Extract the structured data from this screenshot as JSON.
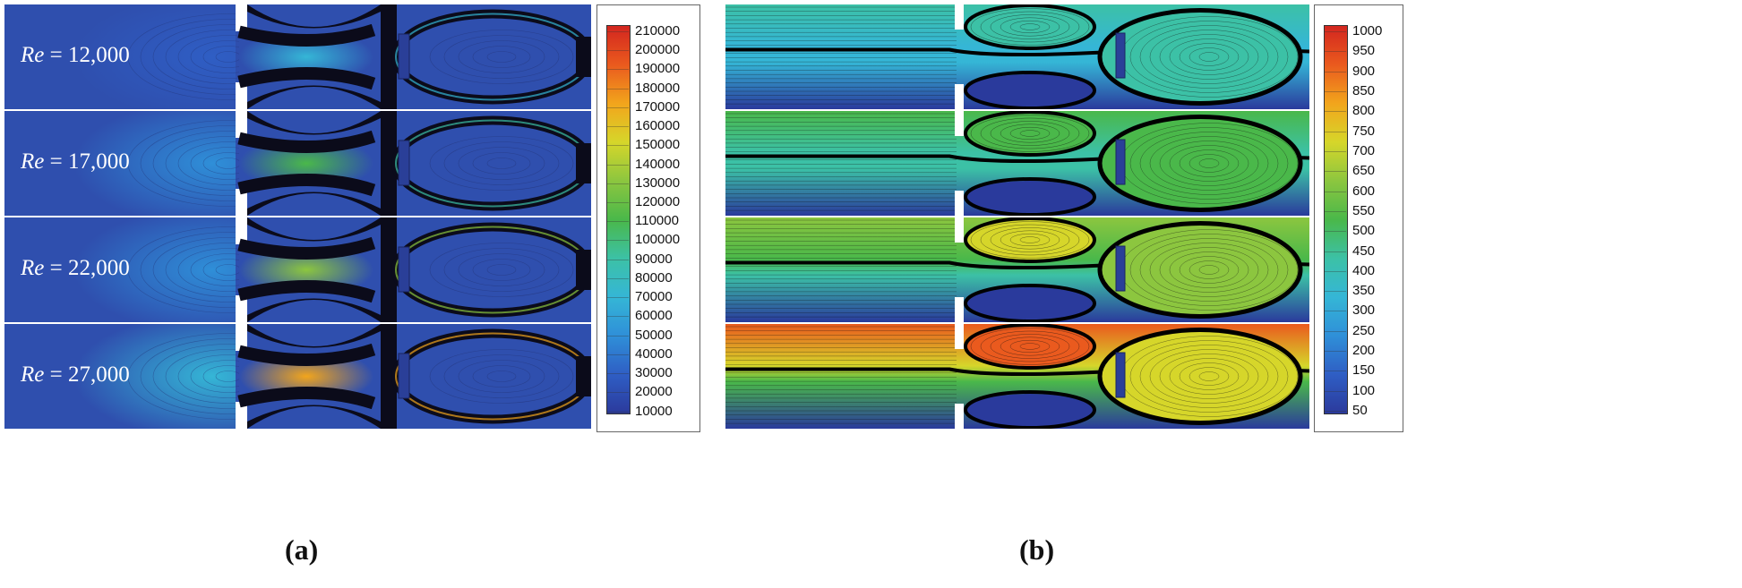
{
  "panel_a": {
    "label": "(a)",
    "rows": [
      {
        "re_symbol": "Re",
        "re_value": " = 12,000",
        "intensity": 0.15
      },
      {
        "re_symbol": "Re",
        "re_value": " = 17,000",
        "intensity": 0.35
      },
      {
        "re_symbol": "Re",
        "re_value": " = 22,000",
        "intensity": 0.55
      },
      {
        "re_symbol": "Re",
        "re_value": " = 27,000",
        "intensity": 0.85
      }
    ],
    "colorbar_ticks": [
      "210000",
      "200000",
      "190000",
      "180000",
      "170000",
      "160000",
      "150000",
      "140000",
      "130000",
      "120000",
      "110000",
      "100000",
      "90000",
      "80000",
      "70000",
      "60000",
      "50000",
      "40000",
      "30000",
      "20000",
      "10000"
    ]
  },
  "panel_b": {
    "label": "(b)",
    "rows": [
      {
        "intensity": 0.3
      },
      {
        "intensity": 0.5
      },
      {
        "intensity": 0.65
      },
      {
        "intensity": 0.95
      }
    ],
    "colorbar_ticks": [
      "1000",
      "950",
      "900",
      "850",
      "800",
      "750",
      "700",
      "650",
      "600",
      "550",
      "500",
      "450",
      "400",
      "350",
      "300",
      "250",
      "200",
      "150",
      "100",
      "50"
    ]
  },
  "colors": {
    "jet": [
      "#2b3a9c",
      "#2f5ec4",
      "#2f8fd8",
      "#35b6d6",
      "#3cc1a6",
      "#4ab84a",
      "#8cc63f",
      "#d6d62a",
      "#f2a51c",
      "#ea5a1e",
      "#d3261f"
    ]
  }
}
